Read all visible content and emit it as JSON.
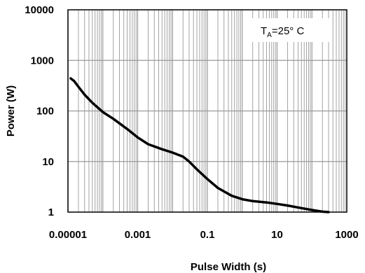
{
  "chart_data": {
    "type": "line",
    "xscale": "log",
    "yscale": "log",
    "xlim": [
      1e-05,
      1000
    ],
    "ylim": [
      1,
      10000
    ],
    "xlabel": "Pulse Width (s)",
    "ylabel": "Power (W)",
    "x_tick_labels": [
      "0.00001",
      "0.001",
      "0.1",
      "10",
      "1000"
    ],
    "x_tick_values": [
      1e-05,
      0.001,
      0.1,
      10,
      1000
    ],
    "y_tick_labels": [
      "1",
      "10",
      "100",
      "1000",
      "10000"
    ],
    "y_tick_values": [
      1,
      10,
      100,
      1000,
      10000
    ],
    "grid": true,
    "annotation": {
      "main": "T",
      "sub": "A",
      "rest": "=25° C"
    },
    "series": [
      {
        "color": "#000000",
        "x": [
          1.2e-05,
          1.5e-05,
          2e-05,
          3e-05,
          5e-05,
          0.0001,
          0.0002,
          0.0005,
          0.001,
          0.002,
          0.005,
          0.01,
          0.02,
          0.03,
          0.05,
          0.1,
          0.2,
          0.5,
          1,
          2,
          5,
          10,
          20,
          50,
          100,
          200,
          300
        ],
        "y": [
          440,
          390,
          300,
          210,
          145,
          95,
          70,
          44,
          30,
          22,
          17.5,
          15,
          12.5,
          10,
          7,
          4.5,
          3,
          2.1,
          1.8,
          1.65,
          1.55,
          1.45,
          1.35,
          1.2,
          1.1,
          1.02,
          1.0
        ]
      }
    ]
  }
}
